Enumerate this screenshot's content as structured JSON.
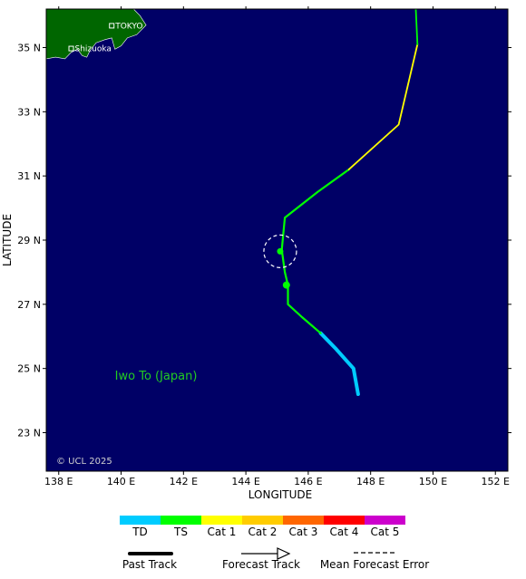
{
  "map": {
    "lon_range": [
      137.6,
      152.4
    ],
    "lat_range": [
      21.8,
      36.2
    ],
    "lon_ticks": [
      138,
      140,
      142,
      144,
      146,
      148,
      150,
      152
    ],
    "lon_tick_labels": [
      "138 E",
      "140 E",
      "142 E",
      "144 E",
      "146 E",
      "148 E",
      "150 E",
      "152 E"
    ],
    "lat_ticks": [
      23,
      25,
      27,
      29,
      31,
      33,
      35
    ],
    "lat_tick_labels": [
      "23 N",
      "25 N",
      "27 N",
      "29 N",
      "31 N",
      "33 N",
      "35 N"
    ],
    "xlabel": "LONGITUDE",
    "ylabel": "LATITUDE",
    "ocean_color": "#000066",
    "land_color": "#006600",
    "copyright": "© UCL 2025"
  },
  "places": [
    {
      "name": "TOKYO",
      "lon": 139.7,
      "lat": 35.68
    },
    {
      "name": "Shizuoka",
      "lon": 138.4,
      "lat": 34.97
    }
  ],
  "island_label": {
    "text": "Iwo To (Japan)",
    "lon": 139.8,
    "lat": 24.8
  },
  "land_polygon": [
    [
      137.6,
      36.2
    ],
    [
      140.4,
      36.2
    ],
    [
      140.6,
      36.0
    ],
    [
      140.8,
      35.7
    ],
    [
      140.5,
      35.4
    ],
    [
      140.2,
      35.3
    ],
    [
      140.0,
      35.05
    ],
    [
      139.8,
      34.95
    ],
    [
      139.7,
      35.3
    ],
    [
      139.5,
      35.25
    ],
    [
      139.2,
      35.15
    ],
    [
      139.0,
      34.9
    ],
    [
      138.9,
      34.7
    ],
    [
      138.75,
      34.75
    ],
    [
      138.6,
      34.95
    ],
    [
      138.4,
      34.85
    ],
    [
      138.2,
      34.65
    ],
    [
      137.9,
      34.7
    ],
    [
      137.6,
      34.65
    ]
  ],
  "track": {
    "segments": [
      {
        "category": "TD",
        "points": [
          [
            147.6,
            24.2
          ],
          [
            147.45,
            25.0
          ],
          [
            146.9,
            25.6
          ],
          [
            146.4,
            26.1
          ]
        ]
      },
      {
        "category": "TS",
        "points": [
          [
            146.4,
            26.1
          ],
          [
            145.8,
            26.6
          ],
          [
            145.35,
            27.0
          ],
          [
            145.35,
            27.6
          ],
          [
            145.25,
            28.0
          ],
          [
            145.15,
            28.7
          ],
          [
            145.25,
            29.7
          ],
          [
            146.3,
            30.5
          ],
          [
            147.3,
            31.2
          ]
        ]
      },
      {
        "category": "Cat 1",
        "points": [
          [
            147.3,
            31.2
          ],
          [
            148.9,
            32.6
          ],
          [
            149.5,
            35.1
          ]
        ]
      },
      {
        "category": "TS",
        "points": [
          [
            149.5,
            35.1
          ],
          [
            149.45,
            36.2
          ]
        ]
      }
    ],
    "positions": [
      {
        "lon": 145.3,
        "lat": 27.6
      },
      {
        "lon": 145.1,
        "lat": 28.65
      }
    ],
    "error_circle": {
      "lon": 145.1,
      "lat": 28.65
    }
  },
  "legend": {
    "categories": [
      {
        "label": "TD",
        "color": "#00ccff"
      },
      {
        "label": "TS",
        "color": "#00ff00"
      },
      {
        "label": "Cat 1",
        "color": "#ffff00"
      },
      {
        "label": "Cat 2",
        "color": "#ffcc00"
      },
      {
        "label": "Cat 3",
        "color": "#ff6600"
      },
      {
        "label": "Cat 4",
        "color": "#ff0000"
      },
      {
        "label": "Cat 5",
        "color": "#cc00cc"
      }
    ],
    "track_types": [
      {
        "label": "Past Track"
      },
      {
        "label": "Forecast Track"
      },
      {
        "label": "Mean Forecast Error"
      }
    ]
  }
}
